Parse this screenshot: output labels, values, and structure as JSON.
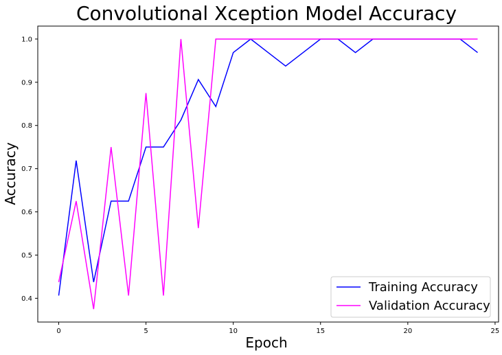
{
  "chart_data": {
    "type": "line",
    "title": "Convolutional Xception Model Accuracy",
    "xlabel": "Epoch",
    "ylabel": "Accuracy",
    "xlim": [
      -1.2,
      25.2
    ],
    "ylim": [
      0.345,
      1.03
    ],
    "xticks": [
      0,
      5,
      10,
      15,
      20,
      25
    ],
    "yticks": [
      0.4,
      0.5,
      0.6,
      0.7,
      0.8,
      0.9,
      1.0
    ],
    "ytick_labels": [
      "0.4",
      "0.5",
      "0.6",
      "0.7",
      "0.8",
      "0.9",
      "1.0"
    ],
    "grid": false,
    "legend_position": "lower-right",
    "x": [
      0,
      1,
      2,
      3,
      4,
      5,
      6,
      7,
      8,
      9,
      10,
      11,
      12,
      13,
      14,
      15,
      16,
      17,
      18,
      19,
      20,
      21,
      22,
      23,
      24
    ],
    "series": [
      {
        "name": "Training Accuracy",
        "color": "#0000ff",
        "values": [
          0.40625,
          0.71875,
          0.4375,
          0.625,
          0.625,
          0.75,
          0.75,
          0.8125,
          0.90625,
          0.84375,
          0.96875,
          1.0,
          0.96875,
          0.9375,
          0.96875,
          1.0,
          1.0,
          0.96875,
          1.0,
          1.0,
          1.0,
          1.0,
          1.0,
          1.0,
          0.96875
        ]
      },
      {
        "name": "Validation Accuracy",
        "color": "#ff00ff",
        "values": [
          0.4375,
          0.625,
          0.375,
          0.75,
          0.40625,
          0.875,
          0.40625,
          1.0,
          0.5625,
          1.0,
          1.0,
          1.0,
          1.0,
          1.0,
          1.0,
          1.0,
          1.0,
          1.0,
          1.0,
          1.0,
          1.0,
          1.0,
          1.0,
          1.0,
          1.0
        ]
      }
    ]
  }
}
